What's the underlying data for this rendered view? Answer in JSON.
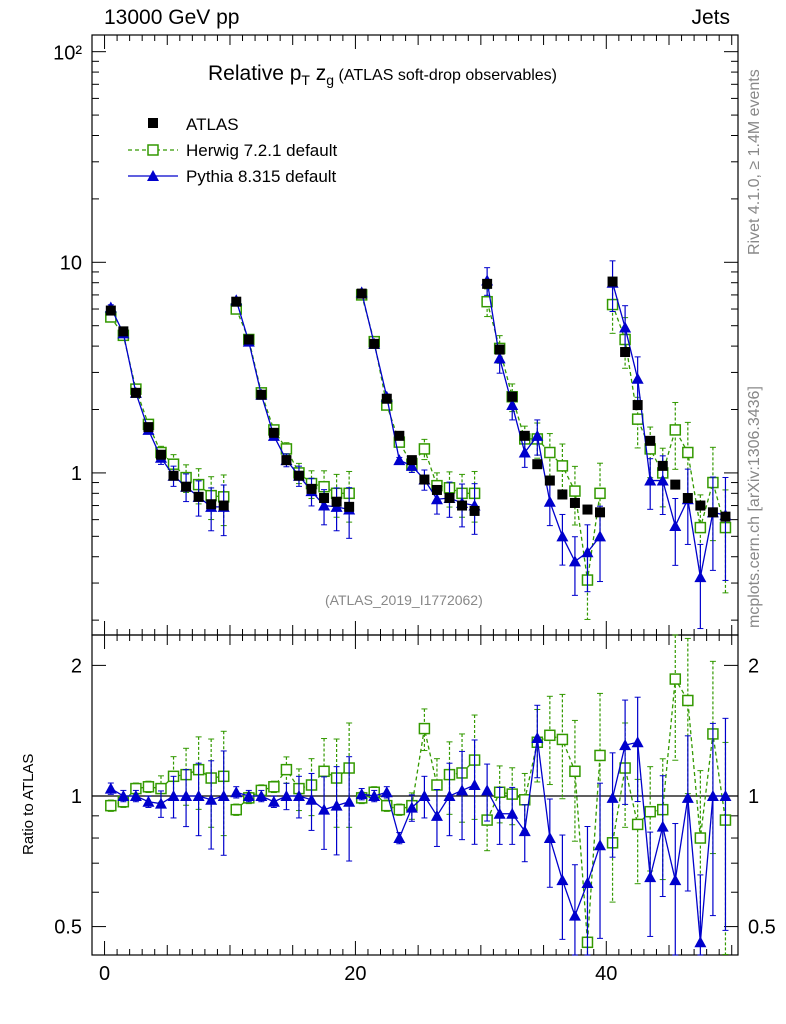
{
  "header": {
    "left": "13000 GeV pp",
    "right": "Jets"
  },
  "title": {
    "main": "Relative p",
    "sub_t": "T",
    "z": " z",
    "sub_g": "g",
    "suffix": " (ATLAS soft-drop observables)"
  },
  "side_labels": {
    "rivet": "Rivet 4.1.0, ≥ 1.4M events",
    "mcplots": "mcplots.cern.ch [arXiv:1306.3436]"
  },
  "reference": "(ATLAS_2019_I1772062)",
  "ratio_ylabel": "Ratio to ATLAS",
  "legend": {
    "atlas": "ATLAS",
    "herwig": "Herwig 7.2.1 default",
    "pythia": "Pythia 8.315 default"
  },
  "colors": {
    "atlas": "#000000",
    "herwig": "#339900",
    "pythia": "#0000cc"
  },
  "chart_data": {
    "type": "scatter",
    "title": "Relative pT zg (ATLAS soft-drop observables)",
    "xlabel": "",
    "ylabel": "",
    "xlim": [
      -1,
      50.5
    ],
    "ylim": [
      0.17,
      120
    ],
    "yscale": "log",
    "main_y_ticks": [
      "1",
      "10"
    ],
    "main_y_top_tick": "10²",
    "ratio_ylim": [
      0.43,
      2.35
    ],
    "ratio_y_ticks": [
      "0.5",
      "1",
      "2"
    ],
    "x_ticks": [
      "0",
      "20",
      "40"
    ],
    "x": [
      0.5,
      1.5,
      2.5,
      3.5,
      4.5,
      5.5,
      6.5,
      7.5,
      8.5,
      9.5,
      10.5,
      11.5,
      12.5,
      13.5,
      14.5,
      15.5,
      16.5,
      17.5,
      18.5,
      19.5,
      20.5,
      21.5,
      22.5,
      23.5,
      24.5,
      25.5,
      26.5,
      27.5,
      28.5,
      29.5,
      30.5,
      31.5,
      32.5,
      33.5,
      34.5,
      35.5,
      36.5,
      37.5,
      38.5,
      39.5,
      40.5,
      41.5,
      42.5,
      43.5,
      44.5,
      45.5,
      46.5,
      47.5,
      48.5,
      49.5
    ],
    "series": [
      {
        "name": "ATLAS",
        "values": [
          5.9,
          4.7,
          2.4,
          1.65,
          1.22,
          0.97,
          0.86,
          0.77,
          0.71,
          0.7,
          6.5,
          4.3,
          2.35,
          1.55,
          1.15,
          0.97,
          0.84,
          0.76,
          0.73,
          0.69,
          7.1,
          4.1,
          2.25,
          1.5,
          1.15,
          0.93,
          0.83,
          0.76,
          0.7,
          0.66,
          7.9,
          3.85,
          2.3,
          1.5,
          1.1,
          0.92,
          0.79,
          0.72,
          0.67,
          0.65,
          8.1,
          3.75,
          2.1,
          1.42,
          1.08,
          0.88,
          0.76,
          0.7,
          0.65,
          0.62
        ]
      },
      {
        "name": "Herwig 7.2.1 default",
        "values": [
          5.5,
          4.5,
          2.5,
          1.7,
          1.25,
          1.1,
          0.95,
          0.88,
          0.78,
          0.77,
          6.0,
          4.3,
          2.4,
          1.6,
          1.3,
          1.0,
          0.89,
          0.86,
          0.8,
          0.8,
          7.0,
          4.2,
          2.1,
          1.4,
          1.1,
          1.3,
          0.87,
          0.85,
          0.8,
          0.8,
          6.5,
          3.9,
          2.3,
          1.45,
          1.45,
          1.25,
          1.08,
          0.82,
          0.31,
          0.8,
          6.3,
          4.3,
          1.8,
          1.3,
          1.0,
          1.6,
          1.25,
          0.55,
          0.9,
          0.55
        ]
      },
      {
        "name": "Pythia 8.315 default",
        "values": [
          6.1,
          4.6,
          2.4,
          1.6,
          1.18,
          0.97,
          0.86,
          0.77,
          0.69,
          0.69,
          6.6,
          4.2,
          2.35,
          1.5,
          1.15,
          0.97,
          0.82,
          0.7,
          0.69,
          0.67,
          7.2,
          4.1,
          2.3,
          1.15,
          1.08,
          0.93,
          0.75,
          0.76,
          0.72,
          0.7,
          8.2,
          3.5,
          2.1,
          1.25,
          1.5,
          0.73,
          0.5,
          0.38,
          0.42,
          0.5,
          8.0,
          4.9,
          2.8,
          0.92,
          0.92,
          0.56,
          0.75,
          0.32,
          0.65,
          0.63
        ]
      }
    ],
    "ratio_series": [
      {
        "name": "Herwig 7.2.1 default",
        "values": [
          0.95,
          0.97,
          1.04,
          1.05,
          1.04,
          1.11,
          1.12,
          1.15,
          1.1,
          1.11,
          0.93,
          0.99,
          1.03,
          1.05,
          1.15,
          1.04,
          1.06,
          1.14,
          1.1,
          1.16,
          0.99,
          1.02,
          0.95,
          0.93,
          0.95,
          1.43,
          1.06,
          1.12,
          1.13,
          1.21,
          0.88,
          1.02,
          1.01,
          0.98,
          1.33,
          1.38,
          1.35,
          1.14,
          0.46,
          1.24,
          0.78,
          1.16,
          0.86,
          0.92,
          0.93,
          1.86,
          1.66,
          0.8,
          1.39,
          0.88
        ]
      },
      {
        "name": "Pythia 8.315 default",
        "values": [
          1.04,
          1.0,
          1.0,
          0.97,
          0.96,
          1.0,
          1.0,
          1.0,
          0.98,
          1.0,
          1.02,
          1.0,
          1.0,
          0.97,
          1.0,
          1.0,
          0.98,
          0.93,
          0.95,
          0.97,
          1.01,
          1.0,
          1.02,
          0.8,
          0.94,
          1.0,
          0.9,
          1.0,
          1.03,
          1.06,
          1.03,
          0.91,
          0.91,
          0.83,
          1.36,
          0.8,
          0.64,
          0.53,
          0.63,
          0.77,
          0.99,
          1.31,
          1.33,
          0.65,
          0.85,
          0.64,
          0.99,
          0.46,
          1.0,
          1.0
        ]
      }
    ]
  }
}
